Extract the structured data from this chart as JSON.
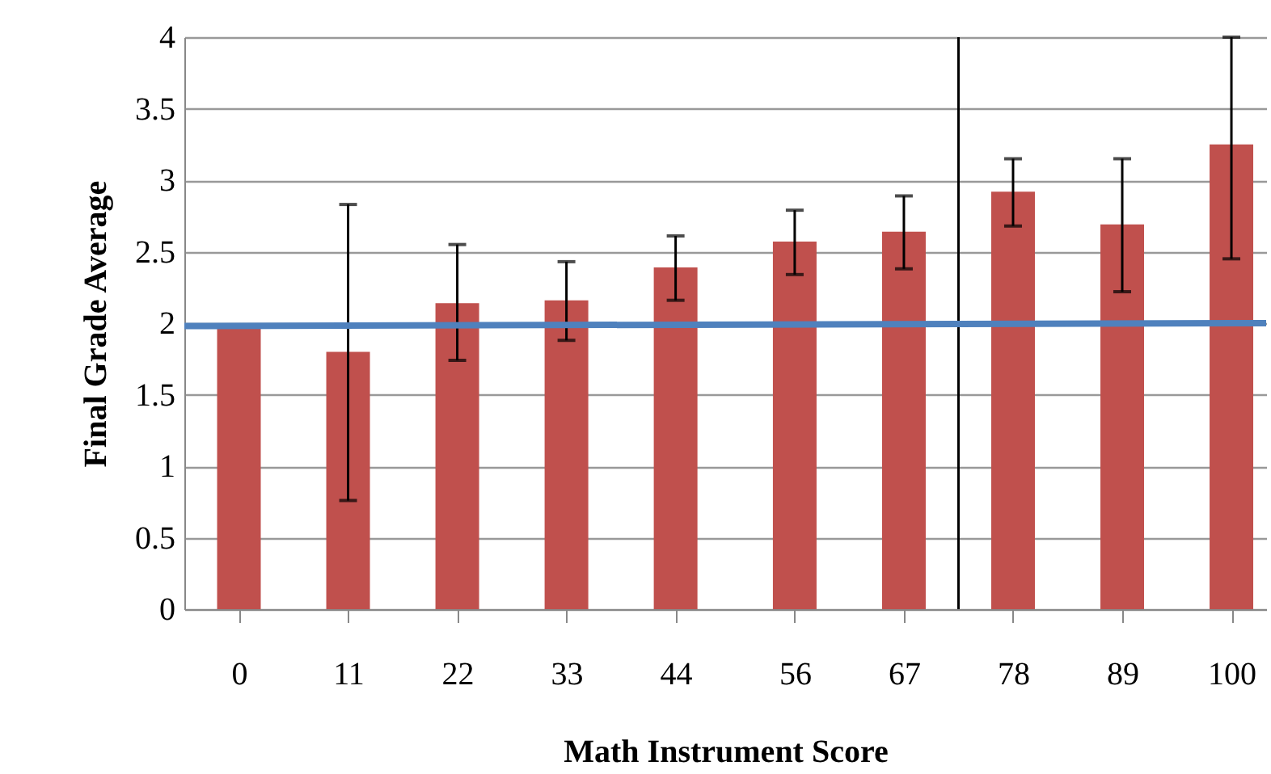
{
  "chart_data": {
    "type": "bar",
    "xlabel": "Math Instrument Score",
    "ylabel": "Final Grade Average",
    "x": [
      0,
      11,
      22,
      33,
      44,
      56,
      67,
      78,
      89,
      100
    ],
    "xlim": [
      -5.5,
      103.5
    ],
    "xticks": [
      0,
      11,
      22,
      33,
      44,
      56,
      67,
      78,
      89,
      100
    ],
    "ylim": [
      0,
      4
    ],
    "yticks": [
      0,
      0.5,
      1,
      1.5,
      2,
      2.5,
      3,
      3.5,
      4
    ],
    "grid": "y",
    "series": [
      {
        "color": "#c0504d",
        "values": [
          1.98,
          1.8,
          2.14,
          2.16,
          2.39,
          2.57,
          2.64,
          2.92,
          2.69,
          3.25
        ],
        "errors": [
          null,
          [
            0.76,
            2.83
          ],
          [
            1.74,
            2.55
          ],
          [
            1.88,
            2.43
          ],
          [
            2.16,
            2.61
          ],
          [
            2.34,
            2.79
          ],
          [
            2.38,
            2.89
          ],
          [
            2.68,
            3.15
          ],
          [
            2.22,
            3.15
          ],
          [
            2.45,
            4.0
          ]
        ]
      },
      {
        "type": "line",
        "color": "#4f81bd",
        "x": [
          -5.5,
          103.5
        ],
        "values": [
          1.98,
          2.0
        ]
      }
    ],
    "ref_lines": [
      {
        "axis": "x",
        "value": 72.5,
        "color": "#000000"
      }
    ]
  }
}
